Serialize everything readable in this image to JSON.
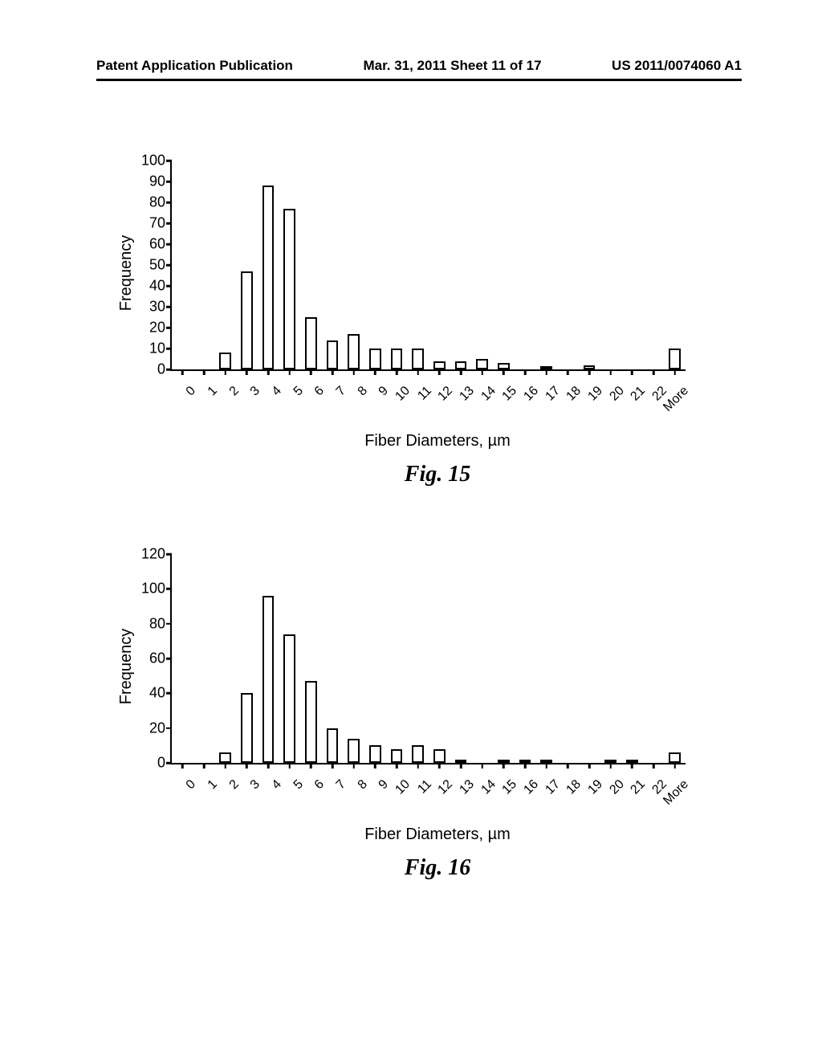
{
  "header": {
    "left": "Patent Application Publication",
    "center": "Mar. 31, 2011  Sheet 11 of 17",
    "right": "US 2011/0074060 A1"
  },
  "fig15": {
    "type": "histogram",
    "title": "Fig. 15",
    "xlabel": "Fiber Diameters, µm",
    "ylabel": "Frequency",
    "ylim": [
      0,
      100
    ],
    "ytick_step": 10,
    "xlabels": [
      "0",
      "1",
      "2",
      "3",
      "4",
      "5",
      "6",
      "7",
      "8",
      "9",
      "10",
      "11",
      "12",
      "13",
      "14",
      "15",
      "16",
      "17",
      "18",
      "19",
      "20",
      "21",
      "22",
      "More"
    ],
    "values": [
      0,
      0,
      8,
      47,
      88,
      77,
      25,
      14,
      17,
      10,
      10,
      10,
      4,
      4,
      5,
      3,
      0,
      1,
      0,
      2,
      0,
      0,
      0,
      10
    ],
    "bar_color": "#ffffff",
    "bar_border_color": "#000000",
    "axis_color": "#000000",
    "bar_width": 0.55,
    "label_fontsize": 20,
    "tick_fontsize": 18
  },
  "fig16": {
    "type": "histogram",
    "title": "Fig. 16",
    "xlabel": "Fiber Diameters, µm",
    "ylabel": "Frequency",
    "ylim": [
      0,
      120
    ],
    "ytick_step": 20,
    "xlabels": [
      "0",
      "1",
      "2",
      "3",
      "4",
      "5",
      "6",
      "7",
      "8",
      "9",
      "10",
      "11",
      "12",
      "13",
      "14",
      "15",
      "16",
      "17",
      "18",
      "19",
      "20",
      "21",
      "22",
      "More"
    ],
    "values": [
      0,
      0,
      6,
      40,
      96,
      74,
      47,
      20,
      14,
      10,
      8,
      10,
      8,
      2,
      0,
      2,
      1,
      1,
      0,
      0,
      1,
      1,
      0,
      6
    ],
    "bar_color": "#ffffff",
    "bar_border_color": "#000000",
    "axis_color": "#000000",
    "bar_width": 0.55,
    "label_fontsize": 20,
    "tick_fontsize": 18
  }
}
